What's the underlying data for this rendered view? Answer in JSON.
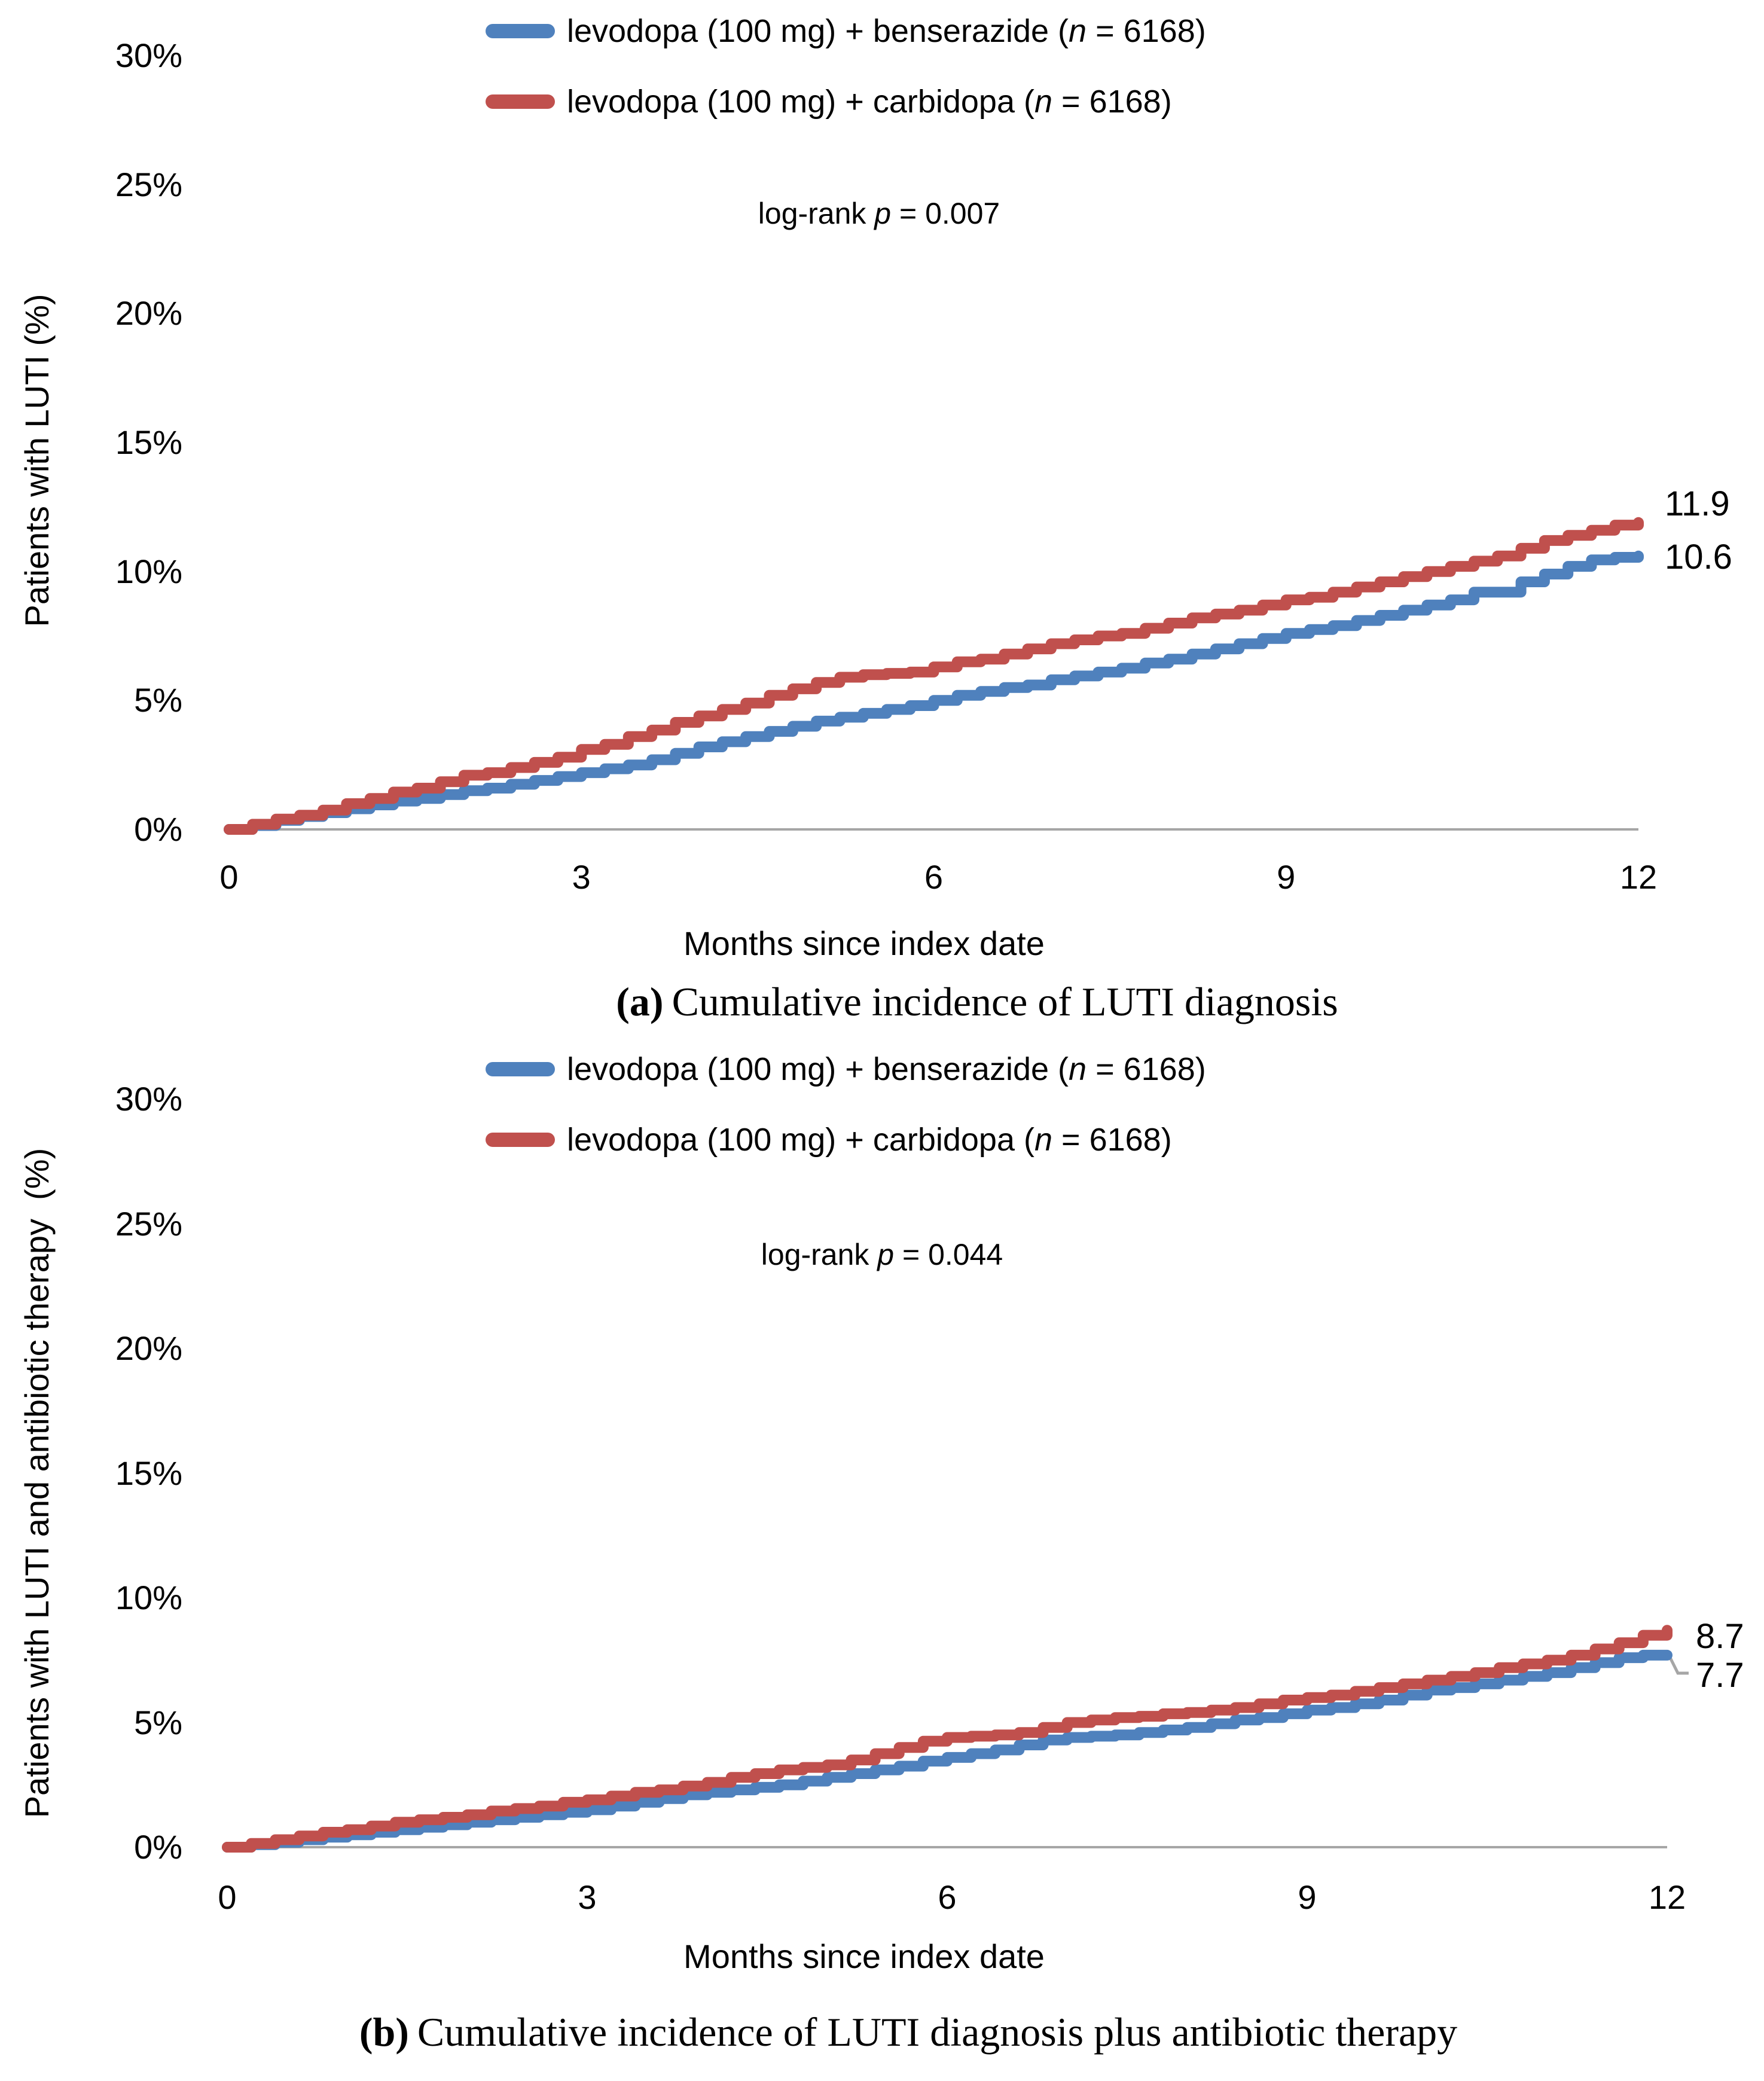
{
  "page": {
    "background": "#ffffff"
  },
  "colors": {
    "benserazide_blue": "#4F81BD",
    "carbidopa_red": "#C0504D",
    "axis_gray": "#A6A6A6",
    "leader_gray": "#A6A6A6",
    "text": "#000000"
  },
  "chart_data": [
    {
      "id": "a",
      "type": "line",
      "caption": {
        "marker": "(a)",
        "text": "Cumulative incidence of LUTI diagnosis"
      },
      "ylabel": "Patients with LUTI (%)",
      "xlabel": "Months since index date",
      "log_rank": {
        "prefix": "log-rank",
        "stat": "p",
        "value": "= 0.007"
      },
      "xlim": [
        0,
        12
      ],
      "ylim": [
        0,
        30
      ],
      "x_ticks": [
        0,
        3,
        6,
        9,
        12
      ],
      "y_tick_values": [
        0,
        5,
        10,
        15,
        20,
        25,
        30
      ],
      "y_tick_labels": [
        "0%",
        "5%",
        "10%",
        "15%",
        "20%",
        "25%",
        "30%"
      ],
      "x_step": 0.2,
      "grid": false,
      "legend_position": "top-center-inside",
      "series": [
        {
          "key": "benserazide",
          "name": "levodopa (100 mg) + benserazide (n = 6168)",
          "color": "#4F81BD",
          "end_label": "10.6",
          "values": [
            0,
            0.15,
            0.35,
            0.5,
            0.65,
            0.8,
            0.95,
            1.1,
            1.2,
            1.35,
            1.5,
            1.6,
            1.75,
            1.9,
            2.05,
            2.2,
            2.35,
            2.5,
            2.7,
            2.95,
            3.2,
            3.4,
            3.6,
            3.8,
            4.0,
            4.2,
            4.35,
            4.5,
            4.65,
            4.8,
            5.0,
            5.2,
            5.35,
            5.5,
            5.6,
            5.8,
            5.95,
            6.1,
            6.25,
            6.45,
            6.6,
            6.8,
            7.0,
            7.2,
            7.4,
            7.6,
            7.75,
            7.9,
            8.1,
            8.3,
            8.5,
            8.7,
            8.9,
            9.2,
            9.2,
            9.6,
            9.9,
            10.2,
            10.45,
            10.55,
            10.6
          ]
        },
        {
          "key": "carbidopa",
          "name": "levodopa (100 mg) + carbidopa (n = 6168)",
          "color": "#C0504D",
          "end_label": "11.9",
          "values": [
            0,
            0.2,
            0.4,
            0.55,
            0.75,
            1.0,
            1.2,
            1.45,
            1.6,
            1.85,
            2.1,
            2.2,
            2.4,
            2.6,
            2.8,
            3.1,
            3.3,
            3.6,
            3.85,
            4.15,
            4.4,
            4.65,
            4.9,
            5.2,
            5.45,
            5.7,
            5.9,
            6.0,
            6.05,
            6.1,
            6.3,
            6.5,
            6.6,
            6.8,
            7.0,
            7.2,
            7.35,
            7.5,
            7.6,
            7.8,
            8.0,
            8.2,
            8.35,
            8.5,
            8.7,
            8.9,
            9.0,
            9.2,
            9.4,
            9.6,
            9.8,
            10.0,
            10.2,
            10.4,
            10.6,
            10.9,
            11.2,
            11.4,
            11.6,
            11.8,
            11.9
          ]
        }
      ]
    },
    {
      "id": "b",
      "type": "line",
      "caption": {
        "marker": "(b)",
        "text": "Cumulative incidence of LUTI diagnosis plus antibiotic therapy"
      },
      "ylabel": "Patients with LUTI and antibiotic therapy  (%)",
      "xlabel": "Months since index date",
      "log_rank": {
        "prefix": "log-rank",
        "stat": "p",
        "value": "= 0.044"
      },
      "xlim": [
        0,
        12
      ],
      "ylim": [
        0,
        30
      ],
      "x_ticks": [
        0,
        3,
        6,
        9,
        12
      ],
      "y_tick_values": [
        0,
        5,
        10,
        15,
        20,
        25,
        30
      ],
      "y_tick_labels": [
        "0%",
        "5%",
        "10%",
        "15%",
        "20%",
        "25%",
        "30%"
      ],
      "x_step": 0.2,
      "grid": false,
      "legend_position": "top-center-inside",
      "series": [
        {
          "key": "benserazide",
          "name": "levodopa (100 mg) + benserazide (n = 6168)",
          "color": "#4F81BD",
          "end_label": "7.7",
          "values": [
            0,
            0.1,
            0.2,
            0.3,
            0.4,
            0.5,
            0.6,
            0.7,
            0.8,
            0.9,
            1.0,
            1.1,
            1.2,
            1.3,
            1.4,
            1.5,
            1.65,
            1.8,
            1.95,
            2.1,
            2.2,
            2.3,
            2.4,
            2.5,
            2.65,
            2.8,
            2.95,
            3.1,
            3.25,
            3.45,
            3.6,
            3.75,
            3.9,
            4.1,
            4.3,
            4.4,
            4.45,
            4.5,
            4.6,
            4.7,
            4.8,
            4.95,
            5.1,
            5.2,
            5.35,
            5.5,
            5.6,
            5.75,
            5.9,
            6.1,
            6.3,
            6.4,
            6.55,
            6.7,
            6.85,
            7.0,
            7.2,
            7.4,
            7.6,
            7.7,
            7.7
          ]
        },
        {
          "key": "carbidopa",
          "name": "levodopa (100 mg) + carbidopa (n = 6168)",
          "color": "#C0504D",
          "end_label": "8.7",
          "values": [
            0,
            0.15,
            0.3,
            0.45,
            0.6,
            0.7,
            0.85,
            1.0,
            1.1,
            1.2,
            1.3,
            1.45,
            1.55,
            1.65,
            1.8,
            1.9,
            2.05,
            2.2,
            2.3,
            2.45,
            2.6,
            2.8,
            2.95,
            3.1,
            3.2,
            3.3,
            3.5,
            3.75,
            4.0,
            4.25,
            4.4,
            4.45,
            4.5,
            4.6,
            4.8,
            5.0,
            5.1,
            5.2,
            5.25,
            5.35,
            5.4,
            5.5,
            5.6,
            5.75,
            5.9,
            6.0,
            6.1,
            6.25,
            6.4,
            6.55,
            6.7,
            6.85,
            7.0,
            7.2,
            7.35,
            7.5,
            7.7,
            7.95,
            8.2,
            8.5,
            8.7
          ]
        }
      ]
    }
  ]
}
